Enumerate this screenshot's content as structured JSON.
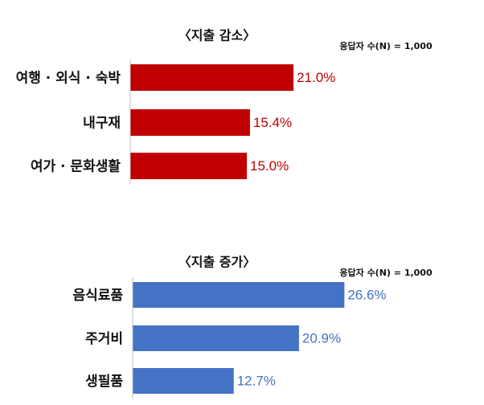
{
  "chart_data": [
    {
      "type": "bar",
      "title": "〈지출 감소〉",
      "note": "응답자 수(N) = 1,000",
      "categories": [
        "여행 · 외식 · 숙박",
        "내구재",
        "여가 · 문화생활"
      ],
      "values": [
        21.0,
        15.4,
        15.0
      ],
      "value_labels": [
        "21.0%",
        "15.4%",
        "15.0%"
      ],
      "color": "#c00000"
    },
    {
      "type": "bar",
      "title": "〈지출 증가〉",
      "note": "응답자 수(N) = 1,000",
      "categories": [
        "음식료품",
        "주거비",
        "생필품"
      ],
      "values": [
        26.6,
        20.9,
        12.7
      ],
      "value_labels": [
        "26.6%",
        "20.9%",
        "12.7%"
      ],
      "color": "#4472c4"
    }
  ]
}
